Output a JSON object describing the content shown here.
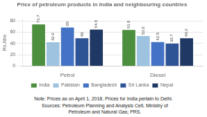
{
  "chart_data": {
    "type": "bar",
    "title": "Price of petroleum products in India and neighbouring countries",
    "ylabel": "Rs./litre",
    "categories": [
      "Petrol",
      "Diesel"
    ],
    "series": [
      {
        "name": "India",
        "color": "#4c8f3f",
        "values": [
          73.7,
          63.8
        ],
        "value_labels": [
          "73.7",
          "63.8"
        ]
      },
      {
        "name": "Pakistan",
        "color": "#9dc3e0",
        "values": [
          42.0,
          53.0
        ],
        "value_labels": [
          "42.0",
          "53.0"
        ]
      },
      {
        "name": "Bangladesh",
        "color": "#4472c4",
        "values": [
          68.0,
          42.5
        ],
        "value_labels": [
          "68",
          "42.5"
        ]
      },
      {
        "name": "Sri Lanka",
        "color": "#2f5496",
        "values": [
          49.0,
          39.7
        ],
        "value_labels": [
          "49",
          "39.7"
        ]
      },
      {
        "name": "Nepal",
        "color": "#1f3864",
        "values": [
          64.6,
          49.2
        ],
        "value_labels": [
          "64.6",
          "49.2"
        ]
      }
    ],
    "ylim": [
      0,
      83
    ],
    "yticks": [
      0,
      20,
      40,
      60,
      80
    ],
    "grid": true,
    "legend": "bottom",
    "data_labels": true,
    "annotations": [
      "Note: Prices as on April 1, 2018. Prices for India pertain to Delhi.",
      "  Sources: Petroleum Planning and Analysis Cell, Ministry of",
      "  Petroleum and Natural Gas; PRS."
    ]
  }
}
